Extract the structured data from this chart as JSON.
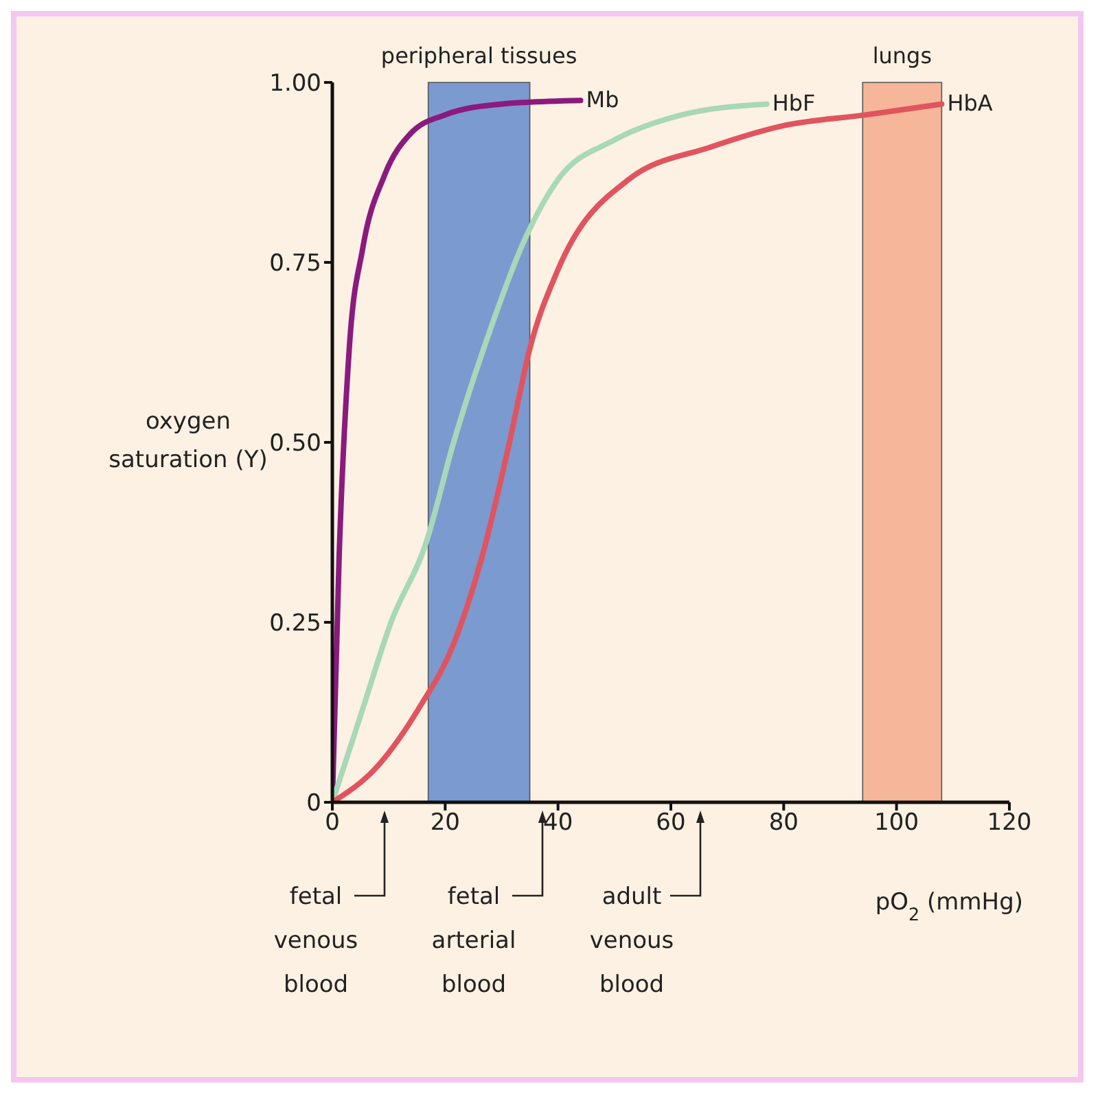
{
  "chart_data": {
    "type": "line",
    "xlabel": "pO$_{2}$ (mmHg)",
    "ylabel": "oxygen saturation (Y)",
    "xlim": [
      0,
      120
    ],
    "xticks": [
      0,
      20,
      40,
      60,
      80,
      100,
      120
    ],
    "ylim": [
      0,
      1
    ],
    "yticks": [
      {
        "value": 0,
        "label": "0"
      },
      {
        "value": 0.25,
        "label": "0.25"
      },
      {
        "value": 0.5,
        "label": "0.50"
      },
      {
        "value": 0.75,
        "label": "0.75"
      },
      {
        "value": 1,
        "label": "1.00"
      }
    ],
    "grid": false,
    "legend": false,
    "marker": "none",
    "line_style": "solid",
    "series": [
      {
        "name": "Mb",
        "color": "#8b1a7e",
        "x": [
          0,
          1.2,
          3,
          5.4,
          9.2,
          14,
          20,
          30,
          44
        ],
        "values": [
          0,
          0.34,
          0.63,
          0.77,
          0.87,
          0.93,
          0.955,
          0.97,
          0.975
        ]
      },
      {
        "name": "HbF",
        "color": "#a8d8b8",
        "x": [
          0,
          5.4,
          10.4,
          16.6,
          21.5,
          27.7,
          34,
          40,
          50,
          62,
          77
        ],
        "values": [
          0,
          0.13,
          0.25,
          0.36,
          0.5,
          0.65,
          0.78,
          0.865,
          0.92,
          0.955,
          0.97
        ]
      },
      {
        "name": "HbA",
        "color": "#e0545f",
        "x": [
          0,
          8,
          15.3,
          21.5,
          26.5,
          31.4,
          35,
          40,
          52.5,
          67,
          80,
          94.6,
          108
        ],
        "values": [
          0,
          0.05,
          0.13,
          0.22,
          0.34,
          0.5,
          0.63,
          0.74,
          0.865,
          0.91,
          0.94,
          0.955,
          0.97
        ]
      }
    ],
    "bands": [
      {
        "axis": "x",
        "from": 17,
        "to": 35,
        "label": "peripheral tissues",
        "color": "#7b9ad0"
      },
      {
        "axis": "x",
        "from": 94,
        "to": 108,
        "label": "lungs",
        "color": "#f5b69a"
      }
    ],
    "annotations": [
      "fetal venous blood",
      "fetal arterial blood",
      "adult venous blood"
    ]
  }
}
